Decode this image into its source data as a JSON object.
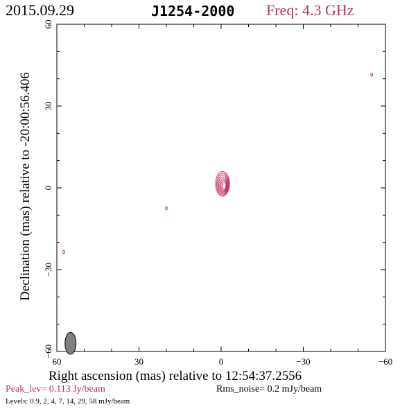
{
  "header": {
    "date": "2015.09.29",
    "source": "J1254-2000",
    "frequency": "Freq: 4.3 GHz"
  },
  "footer": {
    "peak": "Peak_lev=  0.113 Jy/beam",
    "rms": "Rms_noise=  0.2 mJy/beam",
    "levels": "Levels: 0.9,   2,   4,   7,  14,  29,  58 mJy/beam"
  },
  "colors": {
    "contour": "#c0305a",
    "beam": "#808080",
    "axis": "#000000"
  },
  "chart_data": {
    "type": "contour",
    "xlabel": "Right ascension (mas) relative to 12:54:37.2556",
    "ylabel": "Declination (mas) relative to -20:00:56.406",
    "xlim": [
      60,
      -60
    ],
    "ylim": [
      -60,
      60
    ],
    "xticks": [
      "60",
      "30",
      "0",
      "−30",
      "−60"
    ],
    "yticks": [
      "60",
      "30",
      "0",
      "−30",
      "−60"
    ],
    "contour_levels_mJy": [
      0.9,
      2,
      4,
      7,
      14,
      29,
      58
    ],
    "peak_Jy_per_beam": 0.113,
    "rms_noise_mJy_per_beam": 0.2,
    "main_component": {
      "x": -0.5,
      "y": 1.5,
      "width_mas": 5,
      "height_mas": 9,
      "levels": 7
    },
    "minor_components": [
      {
        "x": 20,
        "y": -7.5
      },
      {
        "x": 57.5,
        "y": -23.5
      },
      {
        "x": -55,
        "y": 41.5
      }
    ],
    "beam": {
      "x": 55,
      "y": -57,
      "major_mas": 4,
      "minor_mas": 2
    }
  }
}
